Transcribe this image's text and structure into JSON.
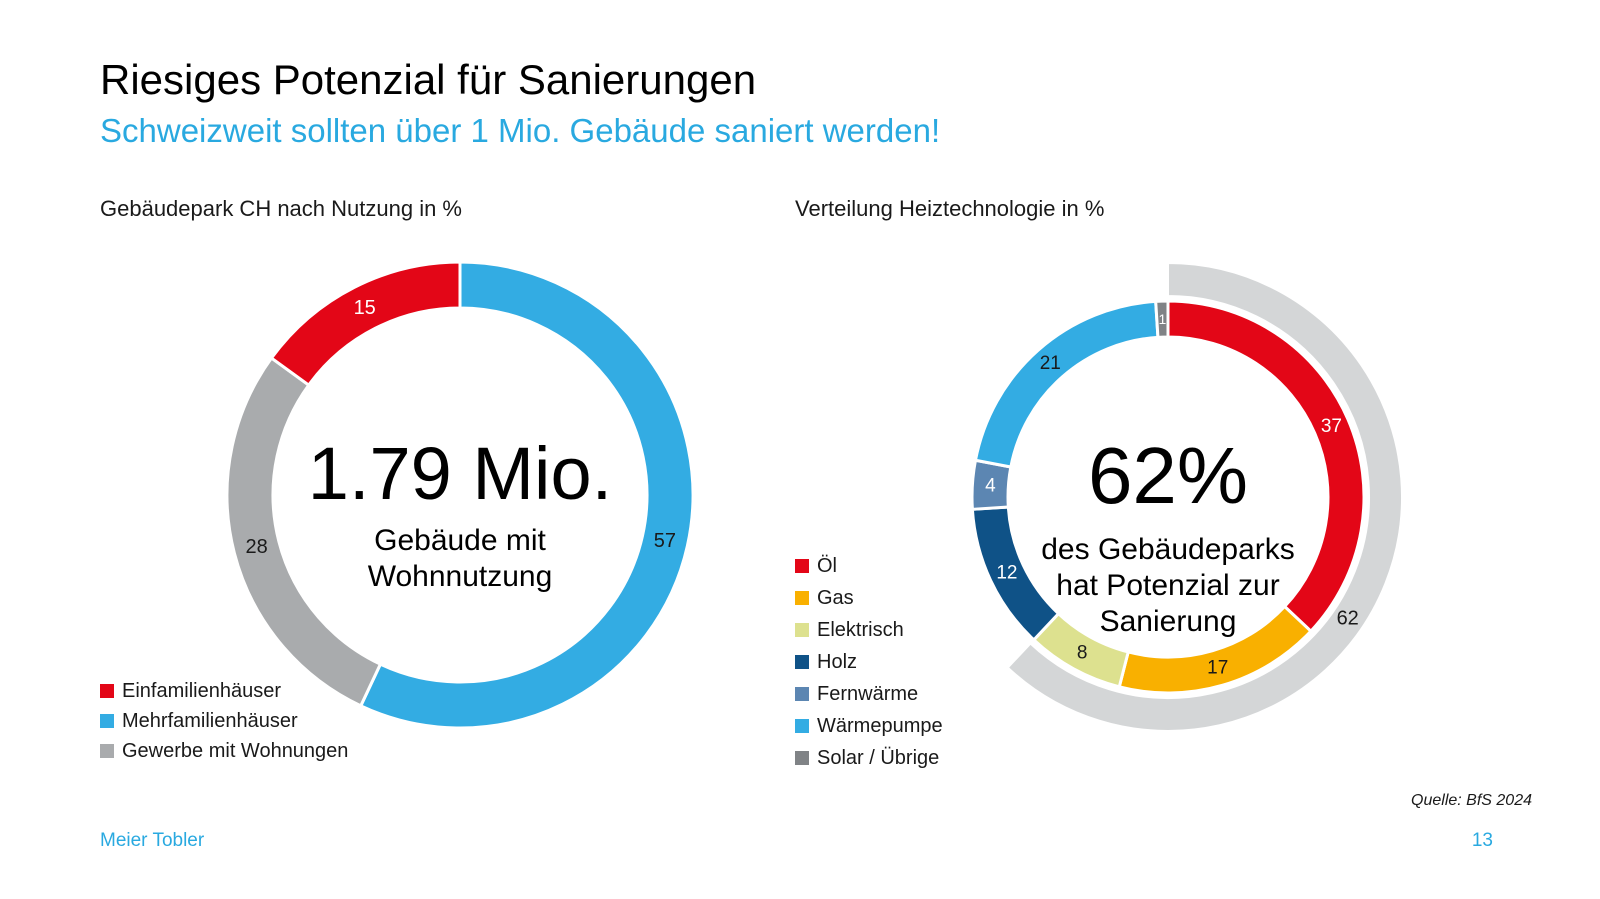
{
  "slide": {
    "title": "Riesiges Potenzial für Sanierungen",
    "subtitle": "Schweizweit sollten über 1 Mio. Gebäude saniert werden!",
    "source": "Quelle: BfS 2024",
    "footer_brand": "Meier Tobler",
    "page_number": "13"
  },
  "colors": {
    "accent_blue": "#29A9E0",
    "title_black": "#000000",
    "red": "#E30617",
    "light_blue": "#33ACE3",
    "mid_gray": "#A9ABAD",
    "highlight_gray": "#D4D6D7"
  },
  "chart_data": [
    {
      "type": "pie",
      "subtype": "donut",
      "title": "Gebäudepark CH nach Nutzung in %",
      "unit": "%",
      "center": {
        "value": "1.79 Mio.",
        "lines": [
          "Gebäude mit",
          "Wohnnutzung"
        ]
      },
      "segments": [
        {
          "name": "Mehrfamilienhäuser",
          "value": 57,
          "color": "#33ACE3",
          "label_color": "#1a1a1a"
        },
        {
          "name": "Gewerbe mit Wohnungen",
          "value": 28,
          "color": "#A9ABAD",
          "label_color": "#1a1a1a"
        },
        {
          "name": "Einfamilienhäuser",
          "value": 15,
          "color": "#E30617",
          "label_color": "#ffffff"
        }
      ],
      "legend": [
        {
          "label": "Einfamilienhäuser",
          "color": "#E30617"
        },
        {
          "label": "Mehrfamilienhäuser",
          "color": "#33ACE3"
        },
        {
          "label": "Gewerbe mit Wohnungen",
          "color": "#A9ABAD"
        }
      ]
    },
    {
      "type": "pie",
      "subtype": "donut",
      "title": "Verteilung Heiztechnologie in %",
      "unit": "%",
      "center": {
        "value": "62%",
        "lines": [
          "des Gebäudeparks",
          "hat Potenzial zur",
          "Sanierung"
        ]
      },
      "segments": [
        {
          "name": "Öl",
          "value": 37,
          "color": "#E30617",
          "label_color": "#ffffff"
        },
        {
          "name": "Gas",
          "value": 17,
          "color": "#F9B000",
          "label_color": "#1a1a1a"
        },
        {
          "name": "Elektrisch",
          "value": 8,
          "color": "#DDE18F",
          "label_color": "#1a1a1a"
        },
        {
          "name": "Holz",
          "value": 12,
          "color": "#0F5287",
          "label_color": "#ffffff"
        },
        {
          "name": "Fernwärme",
          "value": 4,
          "color": "#5C86B2",
          "label_color": "#ffffff"
        },
        {
          "name": "Wärmepumpe",
          "value": 21,
          "color": "#33ACE3",
          "label_color": "#1a1a1a"
        },
        {
          "name": "Solar / Übrige",
          "value": 1,
          "color": "#808386",
          "label_color": "#ffffff"
        }
      ],
      "highlight_arc": {
        "value": 62,
        "label": "62",
        "color": "#D4D6D7",
        "label_color": "#1a1a1a"
      },
      "legend": [
        {
          "label": "Öl",
          "color": "#E30617"
        },
        {
          "label": "Gas",
          "color": "#F9B000"
        },
        {
          "label": "Elektrisch",
          "color": "#DDE18F"
        },
        {
          "label": "Holz",
          "color": "#0F5287"
        },
        {
          "label": "Fernwärme",
          "color": "#5C86B2"
        },
        {
          "label": "Wärmepumpe",
          "color": "#33ACE3"
        },
        {
          "label": "Solar / Übrige",
          "color": "#808386"
        }
      ]
    }
  ]
}
